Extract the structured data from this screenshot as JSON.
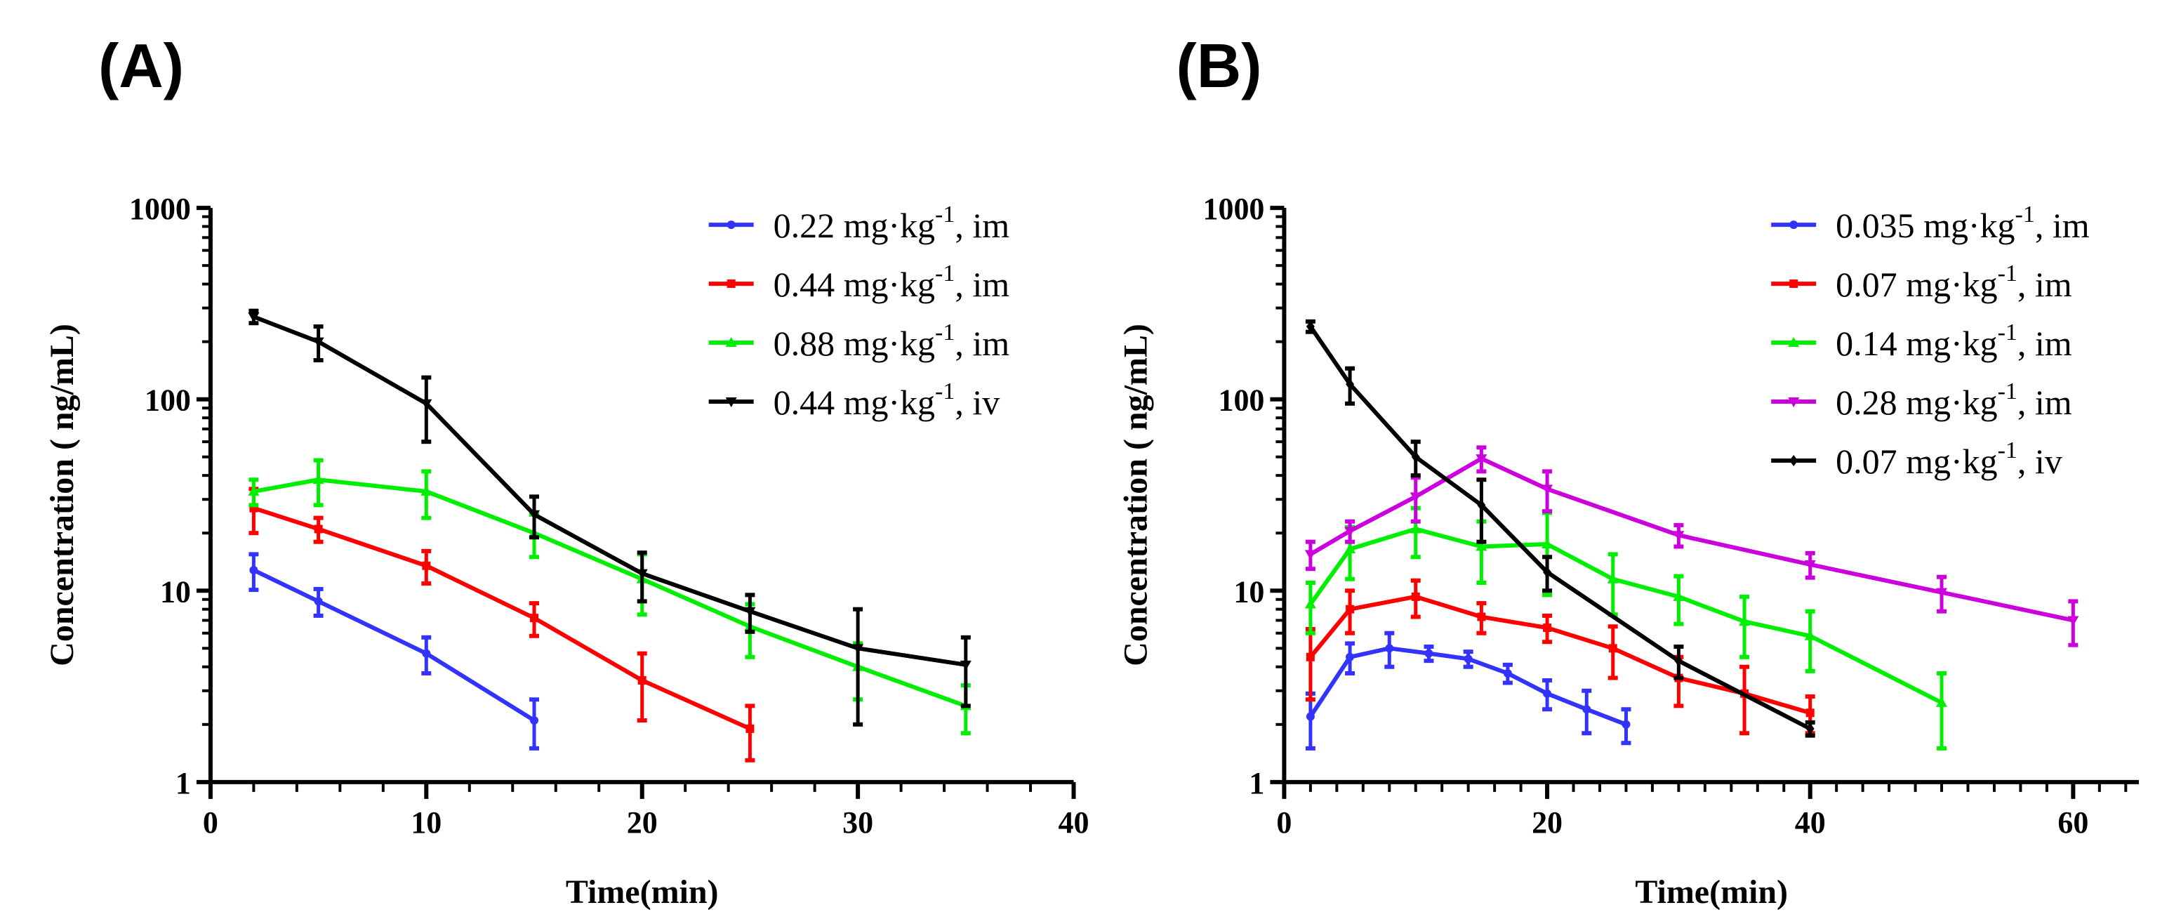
{
  "chart_data": [
    {
      "type": "line",
      "panel_label": "(A)",
      "xlabel": "Time(min)",
      "ylabel": "Concentration ( ng/mL)",
      "xlim": [
        0,
        40
      ],
      "ylim": [
        1,
        1000
      ],
      "yscale": "log",
      "xticks": [
        0,
        10,
        20,
        30,
        40
      ],
      "yticks": [
        1,
        10,
        100,
        1000
      ],
      "legend_position": "top-right",
      "error_bars": true,
      "series": [
        {
          "name": "0.22 mg·kg-1, im",
          "color": "#3333ff",
          "marker": "circle",
          "x": [
            2,
            5,
            10,
            15
          ],
          "y": [
            12.8,
            8.8,
            4.7,
            2.1
          ],
          "err": [
            2.7,
            1.4,
            1.0,
            0.6
          ]
        },
        {
          "name": "0.44 mg·kg-1, im",
          "color": "#ff0000",
          "marker": "square",
          "x": [
            2,
            5,
            10,
            15,
            20,
            25
          ],
          "y": [
            27,
            21,
            13.5,
            7.2,
            3.4,
            1.9
          ],
          "err": [
            7,
            3,
            2.6,
            1.4,
            1.3,
            0.6
          ]
        },
        {
          "name": "0.88 mg·kg-1, im",
          "color": "#00ee00",
          "marker": "triangle-up",
          "x": [
            2,
            5,
            10,
            15,
            20,
            25,
            30,
            35
          ],
          "y": [
            33,
            38,
            33,
            20,
            11.5,
            6.5,
            4.0,
            2.5
          ],
          "err": [
            5,
            10,
            9,
            5,
            4,
            2,
            1.3,
            0.7
          ]
        },
        {
          "name": "0.44 mg·kg-1, iv",
          "color": "#000000",
          "marker": "triangle-down",
          "x": [
            2,
            5,
            10,
            15,
            20,
            25,
            30,
            35
          ],
          "y": [
            270,
            200,
            95,
            25,
            12.3,
            7.8,
            5.0,
            4.1
          ],
          "err": [
            20,
            40,
            35,
            6,
            3.5,
            1.7,
            3.0,
            1.6
          ]
        }
      ]
    },
    {
      "type": "line",
      "panel_label": "(B)",
      "xlabel": "Time(min)",
      "ylabel": "Concentration ( ng/mL)",
      "xlim": [
        0,
        65
      ],
      "ylim": [
        1,
        1000
      ],
      "yscale": "log",
      "xticks": [
        0,
        20,
        40,
        60
      ],
      "yticks": [
        1,
        10,
        100,
        1000
      ],
      "legend_position": "top-right",
      "error_bars": true,
      "series": [
        {
          "name": "0.035 mg·kg-1, im",
          "color": "#3333ff",
          "marker": "circle",
          "x": [
            2,
            5,
            8,
            11,
            14,
            17,
            20,
            23,
            26
          ],
          "y": [
            2.2,
            4.5,
            5.0,
            4.7,
            4.4,
            3.7,
            2.9,
            2.4,
            2.0
          ],
          "err": [
            0.7,
            0.8,
            1.0,
            0.4,
            0.4,
            0.4,
            0.5,
            0.6,
            0.4
          ]
        },
        {
          "name": "0.07 mg·kg-1, im",
          "color": "#ff0000",
          "marker": "square",
          "x": [
            2,
            5,
            10,
            15,
            20,
            25,
            30,
            35,
            40
          ],
          "y": [
            4.5,
            8.0,
            9.3,
            7.3,
            6.4,
            5.0,
            3.5,
            2.9,
            2.3
          ],
          "err": [
            1.8,
            2.0,
            2.0,
            1.3,
            1.0,
            1.5,
            1.0,
            1.1,
            0.5
          ]
        },
        {
          "name": "0.14 mg·kg-1, im",
          "color": "#00ee00",
          "marker": "triangle-up",
          "x": [
            2,
            5,
            10,
            15,
            20,
            25,
            30,
            35,
            40,
            50
          ],
          "y": [
            8.5,
            16.5,
            21,
            17,
            17.5,
            11.5,
            9.3,
            6.9,
            5.8,
            2.6
          ],
          "err": [
            2.5,
            5,
            6,
            6,
            8,
            4,
            2.6,
            2.4,
            2.0,
            1.1
          ]
        },
        {
          "name": "0.28 mg·kg-1, im",
          "color": "#cc00dd",
          "marker": "triangle-down",
          "x": [
            2,
            5,
            10,
            15,
            20,
            30,
            40,
            50,
            60
          ],
          "y": [
            15.5,
            20.5,
            31,
            49,
            34,
            19.5,
            13.7,
            9.8,
            7.0
          ],
          "err": [
            2.5,
            2.5,
            8,
            7,
            8,
            2.5,
            2.0,
            2.0,
            1.8
          ]
        },
        {
          "name": "0.07 mg·kg-1, iv",
          "color": "#000000",
          "marker": "diamond",
          "x": [
            2,
            5,
            10,
            15,
            20,
            30,
            40
          ],
          "y": [
            240,
            120,
            50,
            28,
            12.5,
            4.3,
            1.9
          ],
          "err": [
            15,
            25,
            10,
            10,
            2.5,
            0.8,
            0.15
          ]
        }
      ]
    }
  ]
}
